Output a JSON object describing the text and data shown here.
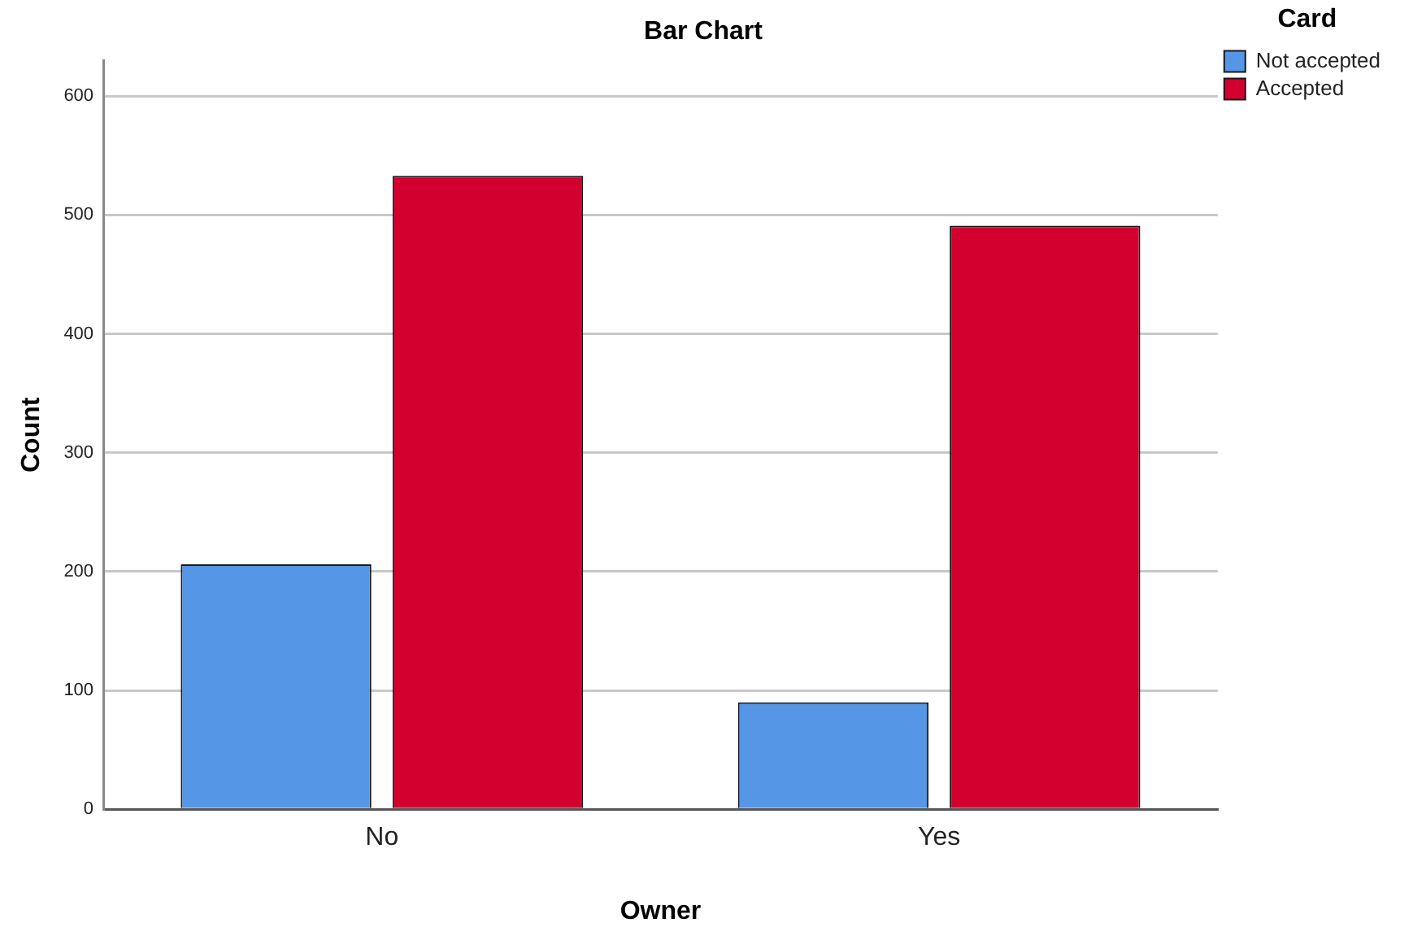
{
  "chart_data": {
    "type": "bar",
    "title": "Bar Chart",
    "xlabel": "Owner",
    "ylabel": "Count",
    "legend_title": "Card",
    "categories": [
      "No",
      "Yes"
    ],
    "series": [
      {
        "name": "Not accepted",
        "color": "#5596e6",
        "values": [
          206,
          90
        ]
      },
      {
        "name": "Accepted",
        "color": "#d3002f",
        "values": [
          533,
          491
        ]
      }
    ],
    "ylim": [
      0,
      630
    ],
    "yticks": [
      0,
      100,
      200,
      300,
      400,
      500,
      600
    ],
    "grid": "y",
    "legend": "top right"
  }
}
